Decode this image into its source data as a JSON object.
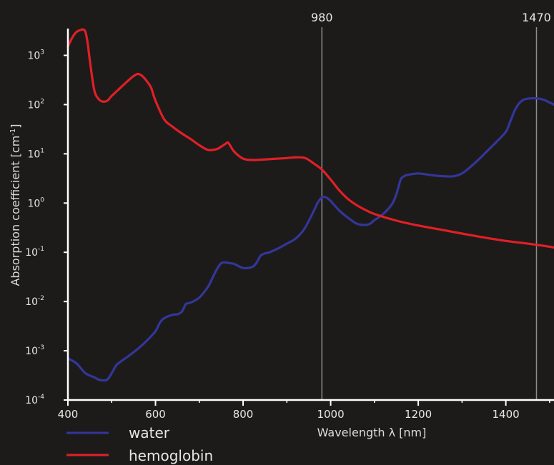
{
  "chart_data": {
    "type": "line",
    "xlabel": "Wavelength λ [nm]",
    "ylabel": "Absorption coefficient [cm",
    "ylabel_sup": "-1",
    "ylabel_suffix": "]",
    "x_scale": "linear",
    "y_scale": "log",
    "xlim": [
      400,
      1510
    ],
    "ylim": [
      0.0001,
      3500
    ],
    "x_ticks": [
      {
        "value": 400,
        "label": "400"
      },
      {
        "value": 600,
        "label": "600"
      },
      {
        "value": 800,
        "label": "800"
      },
      {
        "value": 1000,
        "label": "1000"
      },
      {
        "value": 1200,
        "label": "1200"
      },
      {
        "value": 1400,
        "label": "1400"
      }
    ],
    "y_ticks": [
      {
        "value": 0.0001,
        "base": "10",
        "exp": "-4"
      },
      {
        "value": 0.001,
        "base": "10",
        "exp": "-3"
      },
      {
        "value": 0.01,
        "base": "10",
        "exp": "-2"
      },
      {
        "value": 0.1,
        "base": "10",
        "exp": "-1"
      },
      {
        "value": 1,
        "base": "10",
        "exp": "0"
      },
      {
        "value": 10,
        "base": "10",
        "exp": "1"
      },
      {
        "value": 100,
        "base": "10",
        "exp": "2"
      },
      {
        "value": 1000,
        "base": "10",
        "exp": "3"
      }
    ],
    "reference_lines": [
      {
        "x": 980,
        "label": "980"
      },
      {
        "x": 1470,
        "label": "1470"
      }
    ],
    "grid": false,
    "legend_position": "bottom-left",
    "series": [
      {
        "name": "water",
        "color": "#34369a",
        "x": [
          400,
          420,
          440,
          460,
          470,
          480,
          490,
          500,
          510,
          520,
          540,
          560,
          580,
          600,
          610,
          620,
          640,
          650,
          660,
          665,
          670,
          680,
          700,
          720,
          730,
          740,
          750,
          760,
          770,
          780,
          800,
          820,
          830,
          840,
          850,
          860,
          880,
          900,
          920,
          940,
          960,
          970,
          980,
          990,
          1000,
          1020,
          1040,
          1060,
          1080,
          1090,
          1100,
          1120,
          1140,
          1150,
          1160,
          1170,
          1180,
          1200,
          1220,
          1240,
          1260,
          1280,
          1300,
          1320,
          1340,
          1360,
          1380,
          1400,
          1410,
          1420,
          1430,
          1440,
          1450,
          1460,
          1470,
          1480,
          1490,
          1500,
          1510
        ],
        "y": [
          0.0007,
          0.00055,
          0.00035,
          0.00029,
          0.00026,
          0.00025,
          0.00026,
          0.00035,
          0.0005,
          0.0006,
          0.0008,
          0.0011,
          0.0016,
          0.0025,
          0.0037,
          0.0046,
          0.0054,
          0.0055,
          0.0062,
          0.0075,
          0.009,
          0.0095,
          0.012,
          0.02,
          0.03,
          0.045,
          0.06,
          0.062,
          0.06,
          0.058,
          0.048,
          0.05,
          0.06,
          0.085,
          0.095,
          0.1,
          0.12,
          0.15,
          0.19,
          0.3,
          0.65,
          1.0,
          1.3,
          1.3,
          1.1,
          0.7,
          0.5,
          0.38,
          0.36,
          0.38,
          0.45,
          0.6,
          0.95,
          1.5,
          3.0,
          3.6,
          3.8,
          4.0,
          3.8,
          3.6,
          3.5,
          3.5,
          4.0,
          5.5,
          8.0,
          12.0,
          18.0,
          28.0,
          45.0,
          75.0,
          105.0,
          125.0,
          132.0,
          134.0,
          134.0,
          130.0,
          122.0,
          110.0,
          100.0
        ]
      },
      {
        "name": "hemoglobin",
        "color": "#e11f26",
        "x": [
          400,
          410,
          420,
          430,
          435,
          440,
          445,
          450,
          460,
          470,
          480,
          490,
          500,
          520,
          540,
          550,
          560,
          570,
          580,
          590,
          600,
          620,
          640,
          660,
          680,
          700,
          720,
          740,
          750,
          760,
          765,
          770,
          780,
          800,
          820,
          840,
          860,
          880,
          900,
          920,
          940,
          950,
          960,
          980,
          1000,
          1020,
          1040,
          1060,
          1080,
          1100,
          1150,
          1200,
          1250,
          1300,
          1350,
          1400,
          1450,
          1500,
          1510
        ],
        "y": [
          1500,
          2300,
          3000,
          3300,
          3350,
          3000,
          1800,
          800,
          200,
          130,
          115,
          120,
          150,
          220,
          320,
          380,
          420,
          380,
          300,
          220,
          120,
          50,
          35,
          26,
          20,
          15,
          12,
          12.5,
          14,
          16,
          17,
          15,
          11,
          8,
          7.5,
          7.6,
          7.8,
          8.0,
          8.2,
          8.5,
          8.3,
          7.5,
          6.5,
          4.8,
          3.0,
          1.8,
          1.2,
          0.9,
          0.72,
          0.6,
          0.44,
          0.35,
          0.29,
          0.24,
          0.2,
          0.17,
          0.15,
          0.13,
          0.125
        ]
      }
    ]
  }
}
